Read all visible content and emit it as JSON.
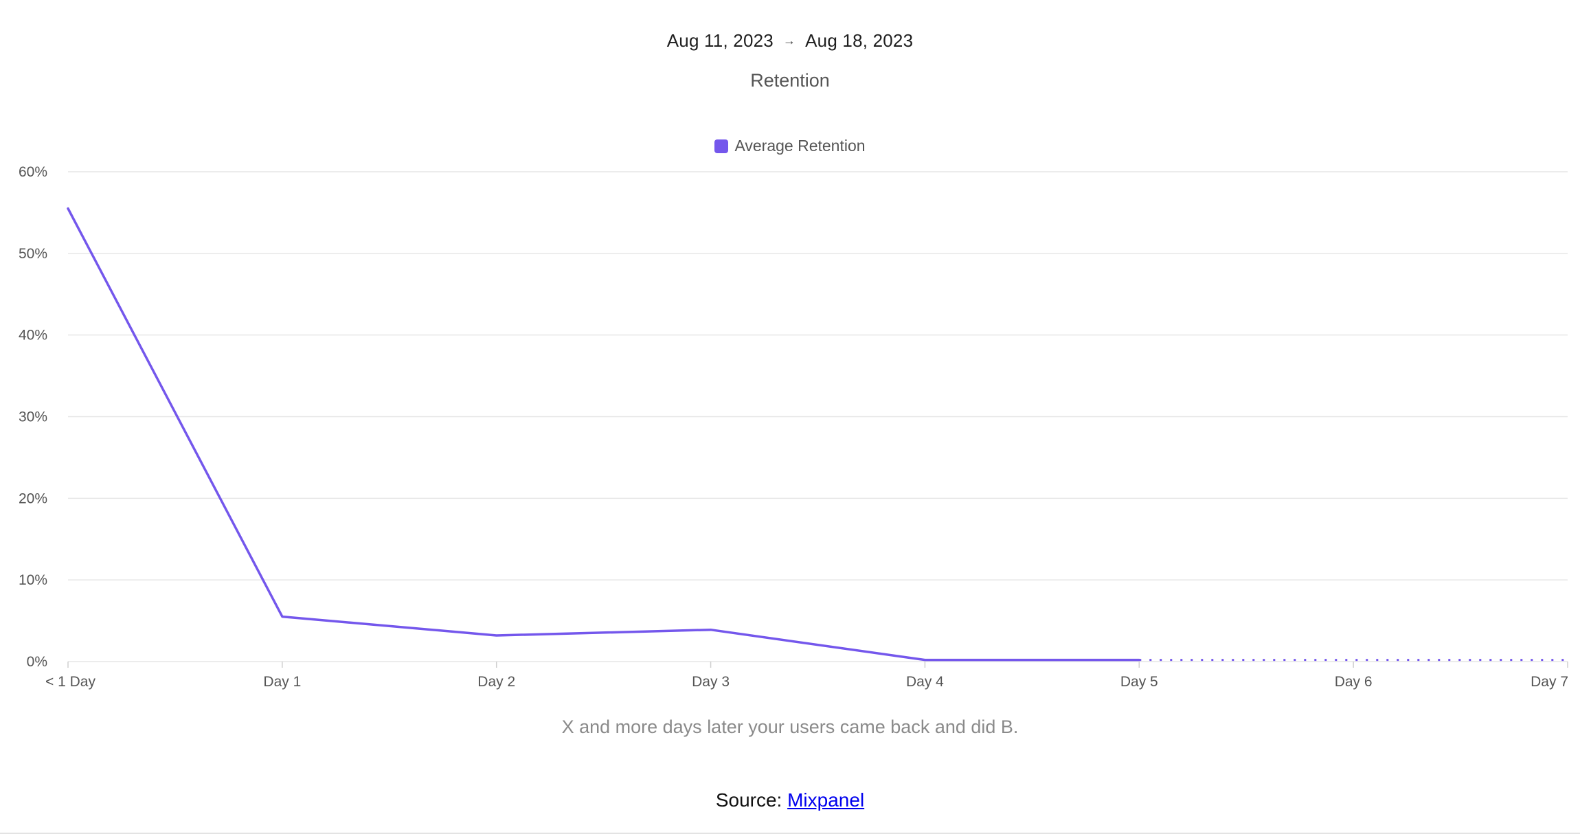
{
  "header": {
    "date_start": "Aug 11, 2023",
    "date_arrow": "→",
    "date_end": "Aug 18, 2023"
  },
  "caption": "X and more days later your users came back and did B.",
  "source": {
    "label": "Source:",
    "link_text": "Mixpanel"
  },
  "colors": {
    "series": "#7457ec",
    "grid": "#e6e6e6",
    "tick_text": "#555555"
  },
  "chart_data": {
    "type": "line",
    "title": "Retention",
    "xlabel": "",
    "ylabel": "",
    "legend_position": "top-center",
    "grid": true,
    "categories": [
      "< 1 Day",
      "Day 1",
      "Day 2",
      "Day 3",
      "Day 4",
      "Day 5",
      "Day 6",
      "Day 7"
    ],
    "y_ticks": [
      "0%",
      "10%",
      "20%",
      "30%",
      "40%",
      "50%",
      "60%"
    ],
    "ylim": [
      0,
      60
    ],
    "series": [
      {
        "name": "Average Retention",
        "values": [
          55.5,
          5.5,
          3.2,
          3.9,
          0.2,
          0.2,
          0.2,
          0.2
        ],
        "solid_through_index": 5,
        "dotted_from_index": 5
      }
    ]
  }
}
